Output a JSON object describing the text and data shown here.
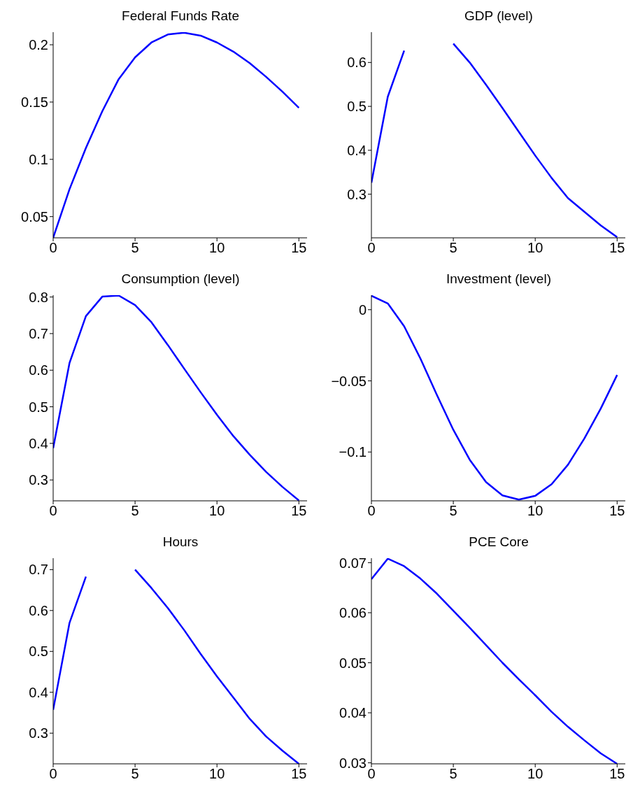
{
  "chart_data": [
    {
      "type": "line",
      "title": "Federal Funds Rate",
      "x": [
        0,
        1,
        2,
        3,
        4,
        5,
        6,
        7,
        8,
        9,
        10,
        11,
        12,
        13,
        14,
        15
      ],
      "values": [
        0.0315,
        0.074,
        0.11,
        0.142,
        0.17,
        0.189,
        0.202,
        0.209,
        0.2105,
        0.208,
        0.202,
        0.194,
        0.184,
        0.172,
        0.159,
        0.145
      ],
      "color": "#0000ff",
      "xlim": [
        0,
        15.5
      ],
      "xticks": [
        0,
        5,
        10,
        15
      ],
      "ylim": [
        0.0315,
        0.211
      ],
      "yticks": [
        0.05,
        0.1,
        0.15,
        0.2
      ],
      "grid": false,
      "marker": "none",
      "line_style": "solid"
    },
    {
      "type": "line",
      "title": "GDP (level)",
      "x": [
        0,
        1,
        2,
        3,
        4,
        5,
        6,
        7,
        8,
        9,
        10,
        11,
        12,
        13,
        14,
        15
      ],
      "values": [
        0.326,
        0.522,
        0.627,
        null,
        null,
        0.643,
        0.6,
        0.549,
        0.496,
        0.442,
        0.388,
        0.337,
        0.291,
        0.26,
        0.229,
        0.202
      ],
      "color": "#0000ff",
      "xlim": [
        0,
        15.5
      ],
      "xticks": [
        0,
        5,
        10,
        15
      ],
      "ylim": [
        0.2006,
        0.669
      ],
      "yticks": [
        0.3,
        0.4,
        0.5,
        0.6
      ],
      "grid": false,
      "marker": "none",
      "line_style": "solid"
    },
    {
      "type": "line",
      "title": "Consumption (level)",
      "x": [
        0,
        1,
        2,
        3,
        4,
        5,
        6,
        7,
        8,
        9,
        10,
        11,
        12,
        13,
        14,
        15
      ],
      "values": [
        0.387,
        0.62,
        0.748,
        0.801,
        0.804,
        0.778,
        0.731,
        0.669,
        0.604,
        0.54,
        0.478,
        0.42,
        0.369,
        0.322,
        0.281,
        0.244
      ],
      "color": "#0000ff",
      "xlim": [
        0,
        15.5
      ],
      "xticks": [
        0,
        5,
        10,
        15
      ],
      "ylim": [
        0.243,
        0.805
      ],
      "yticks": [
        0.3,
        0.4,
        0.5,
        0.6,
        0.7,
        0.8
      ],
      "grid": false,
      "marker": "none",
      "line_style": "solid"
    },
    {
      "type": "line",
      "title": "Investment (level)",
      "x": [
        0,
        1,
        2,
        3,
        4,
        5,
        6,
        7,
        8,
        9,
        10,
        11,
        12,
        13,
        14,
        15
      ],
      "values": [
        0.0098,
        0.0044,
        -0.0117,
        -0.0345,
        -0.06,
        -0.0844,
        -0.1054,
        -0.1212,
        -0.1305,
        -0.1334,
        -0.1308,
        -0.1226,
        -0.1089,
        -0.0905,
        -0.0695,
        -0.0459
      ],
      "color": "#0000ff",
      "xlim": [
        0,
        15.5
      ],
      "xticks": [
        0,
        5,
        10,
        15
      ],
      "ylim": [
        -0.1343,
        0.0102
      ],
      "yticks": [
        {
          "value": -0.1,
          "label": "−0.1"
        },
        {
          "value": -0.05,
          "label": "−0.05"
        },
        0
      ],
      "grid": false,
      "marker": "none",
      "line_style": "solid"
    },
    {
      "type": "line",
      "title": "Hours",
      "x": [
        0,
        1,
        2,
        3,
        4,
        5,
        6,
        7,
        8,
        9,
        10,
        11,
        12,
        13,
        14,
        15
      ],
      "values": [
        0.357,
        0.57,
        0.683,
        null,
        null,
        0.7,
        0.655,
        0.606,
        0.552,
        0.494,
        0.439,
        0.387,
        0.335,
        0.292,
        0.257,
        0.225
      ],
      "color": "#0000ff",
      "xlim": [
        0,
        15.5
      ],
      "xticks": [
        0,
        5,
        10,
        15
      ],
      "ylim": [
        0.225,
        0.728
      ],
      "yticks": [
        0.3,
        0.4,
        0.5,
        0.6,
        0.7
      ],
      "grid": false,
      "marker": "none",
      "line_style": "solid"
    },
    {
      "type": "line",
      "title": "PCE Core",
      "x": [
        0,
        1,
        2,
        3,
        4,
        5,
        6,
        7,
        8,
        9,
        10,
        11,
        12,
        13,
        14,
        15
      ],
      "values": [
        0.0667,
        0.0708,
        0.0693,
        0.0668,
        0.0638,
        0.0604,
        0.057,
        0.0535,
        0.05,
        0.0467,
        0.0435,
        0.0402,
        0.0372,
        0.0345,
        0.0319,
        0.0298
      ],
      "color": "#0000ff",
      "xlim": [
        0,
        15.5
      ],
      "xticks": [
        0,
        5,
        10,
        15
      ],
      "ylim": [
        0.0298,
        0.0709
      ],
      "yticks": [
        0.03,
        0.04,
        0.05,
        0.06,
        0.07
      ],
      "grid": false,
      "marker": "none",
      "line_style": "solid"
    }
  ]
}
